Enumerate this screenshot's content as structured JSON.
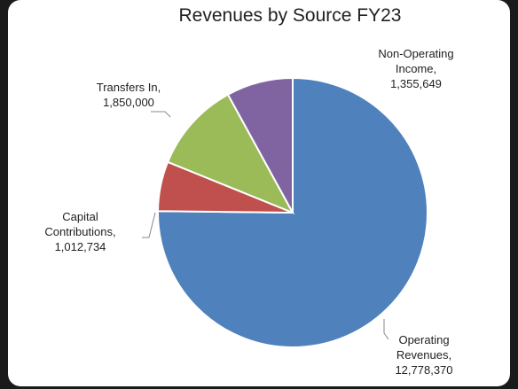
{
  "chart_data": {
    "type": "pie",
    "title": "Revenues by Source FY23",
    "categories": [
      "Operating Revenues",
      "Capital Contributions",
      "Transfers In",
      "Non-Operating Income"
    ],
    "values": [
      12778370,
      1012734,
      1850000,
      1355649
    ],
    "value_labels": [
      "12,778,370",
      "1,012,734",
      "1,850,000",
      "1,355,649"
    ],
    "label_separator": ",",
    "colors": [
      "#4f81bd",
      "#c0504d",
      "#9bbb59",
      "#8064a2"
    ]
  }
}
